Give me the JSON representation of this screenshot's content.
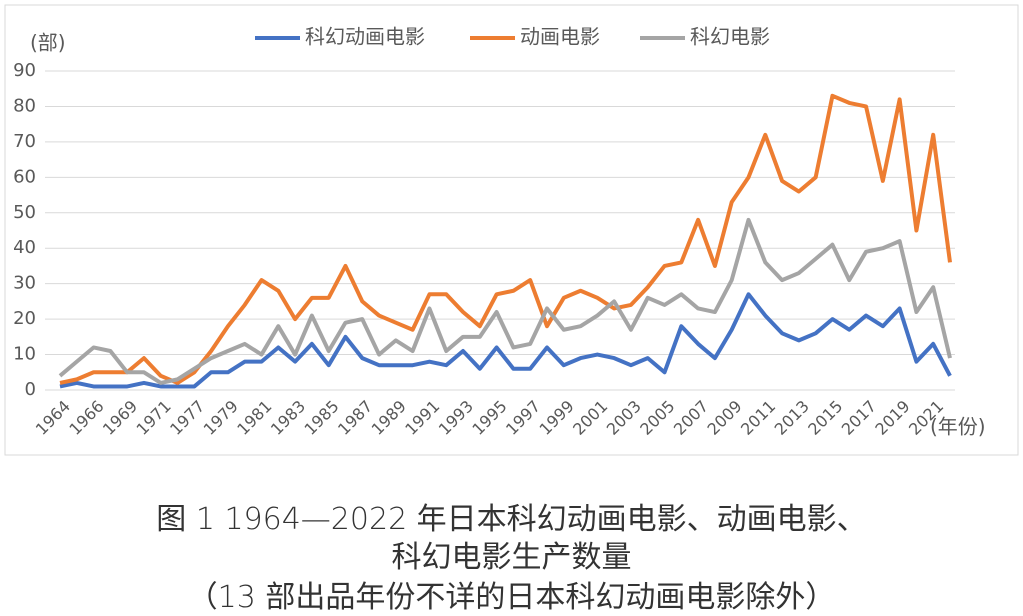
{
  "chart_data": {
    "type": "line",
    "y_label": "(部)",
    "x_label": "(年份)",
    "categories": [
      "1964",
      null,
      "1966",
      null,
      "1969",
      null,
      "1971",
      null,
      "1977",
      null,
      "1979",
      null,
      "1981",
      null,
      "1983",
      null,
      "1985",
      null,
      "1987",
      null,
      "1989",
      null,
      "1991",
      null,
      "1993",
      null,
      "1995",
      null,
      "1997",
      null,
      "1999",
      null,
      "2001",
      null,
      "2003",
      null,
      "2005",
      null,
      "2007",
      null,
      "2009",
      null,
      "2011",
      null,
      "2013",
      null,
      "2015",
      null,
      "2017",
      null,
      "2019",
      null,
      "2021",
      null
    ],
    "series": [
      {
        "name": "科幻动画电影",
        "color": "#4472c4",
        "values": [
          1,
          2,
          1,
          1,
          1,
          2,
          1,
          1,
          1,
          5,
          5,
          8,
          8,
          12,
          8,
          13,
          7,
          15,
          9,
          7,
          7,
          7,
          8,
          7,
          11,
          6,
          12,
          6,
          6,
          12,
          7,
          9,
          10,
          9,
          7,
          9,
          5,
          18,
          13,
          9,
          17,
          27,
          21,
          16,
          14,
          16,
          20,
          17,
          21,
          18,
          23,
          8,
          13,
          4
        ]
      },
      {
        "name": "动画电影",
        "color": "#ed7d31",
        "values": [
          2,
          3,
          5,
          5,
          5,
          9,
          4,
          2,
          5,
          11,
          18,
          24,
          31,
          28,
          20,
          26,
          26,
          35,
          25,
          21,
          19,
          17,
          27,
          27,
          22,
          18,
          27,
          28,
          31,
          18,
          26,
          28,
          26,
          23,
          24,
          29,
          35,
          36,
          48,
          35,
          53,
          60,
          72,
          59,
          56,
          60,
          83,
          81,
          80,
          59,
          82,
          45,
          72,
          36
        ]
      },
      {
        "name": "科幻电影",
        "color": "#a5a5a5",
        "values": [
          4,
          8,
          12,
          11,
          5,
          5,
          2,
          3,
          6,
          9,
          11,
          13,
          10,
          18,
          10,
          21,
          11,
          19,
          20,
          10,
          14,
          11,
          23,
          11,
          15,
          15,
          22,
          12,
          13,
          23,
          17,
          18,
          21,
          25,
          17,
          26,
          24,
          27,
          23,
          22,
          31,
          48,
          36,
          31,
          33,
          37,
          41,
          31,
          39,
          40,
          42,
          22,
          29,
          9
        ]
      }
    ],
    "ylim": [
      0,
      90
    ],
    "yticks": [
      0,
      10,
      20,
      30,
      40,
      50,
      60,
      70,
      80,
      90
    ],
    "grid": true,
    "legend": "top"
  },
  "caption": [
    "图 1  1964—2022 年日本科幻动画电影、动画电影、",
    "科幻电影生产数量",
    "（13 部出品年份不详的日本科幻动画电影除外）"
  ]
}
